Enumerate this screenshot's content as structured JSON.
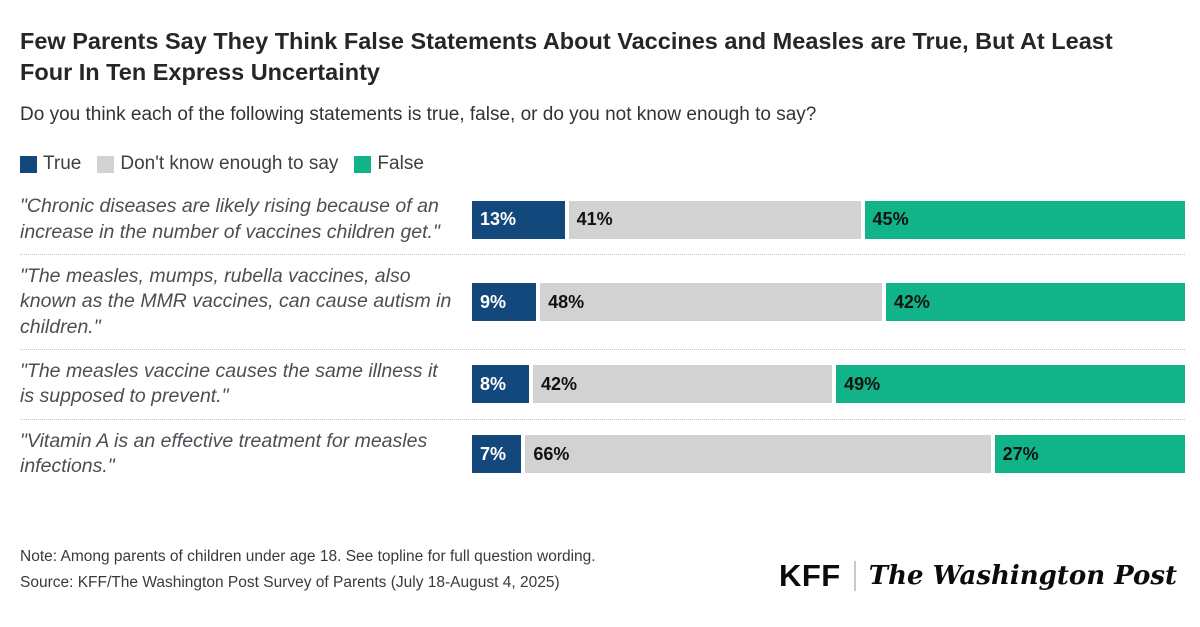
{
  "header": {
    "title": "Few Parents Say They Think False Statements About Vaccines and Measles are True, But At Least Four In Ten Express Uncertainty",
    "subtitle": "Do you think each of the following statements is true, false, or do you not know enough to say?"
  },
  "chart_data": {
    "type": "bar",
    "orientation": "horizontal_stacked",
    "title": "Few Parents Say They Think False Statements About Vaccines and Measles are True, But At Least Four In Ten Express Uncertainty",
    "subtitle": "Do you think each of the following statements is true, false, or do you not know enough to say?",
    "legend_position": "top",
    "xlim": [
      0,
      100
    ],
    "value_suffix": "%",
    "series": [
      "True",
      "Don't know enough to say",
      "False"
    ],
    "series_keys": [
      "true",
      "dont-know",
      "false"
    ],
    "colors": [
      "#13487d",
      "#d2d2d2",
      "#10b488"
    ],
    "label_colors": [
      "#ffffff",
      "#121212",
      "#121212"
    ],
    "categories": [
      "\"Chronic diseases are likely rising because of an increase in the number of vaccines children get.\"",
      "\"The measles, mumps, rubella vaccines, also known as the MMR vaccines, can cause autism in children.\"",
      "\"The measles vaccine causes the same illness it is supposed to prevent.\"",
      "\"Vitamin A is an effective treatment for measles infections.\""
    ],
    "rows": [
      {
        "statement": "\"Chronic diseases are likely rising because of an increase in the number of vaccines children get.\"",
        "values": [
          13,
          41,
          45
        ]
      },
      {
        "statement": "\"The measles, mumps, rubella vaccines, also known as the MMR vaccines, can cause autism in children.\"",
        "values": [
          9,
          48,
          42
        ]
      },
      {
        "statement": "\"The measles vaccine causes the same illness it is supposed to prevent.\"",
        "values": [
          8,
          42,
          49
        ]
      },
      {
        "statement": "\"Vitamin A is an effective treatment for measles infections.\"",
        "values": [
          7,
          66,
          27
        ]
      }
    ]
  },
  "footer": {
    "note": "Note: Among parents of children under age 18. See topline for full question wording.",
    "source": "Source: KFF/The Washington Post Survey of Parents (July 18-August 4, 2025)",
    "logos": {
      "kff": "KFF",
      "wapo": "The Washington Post"
    }
  }
}
